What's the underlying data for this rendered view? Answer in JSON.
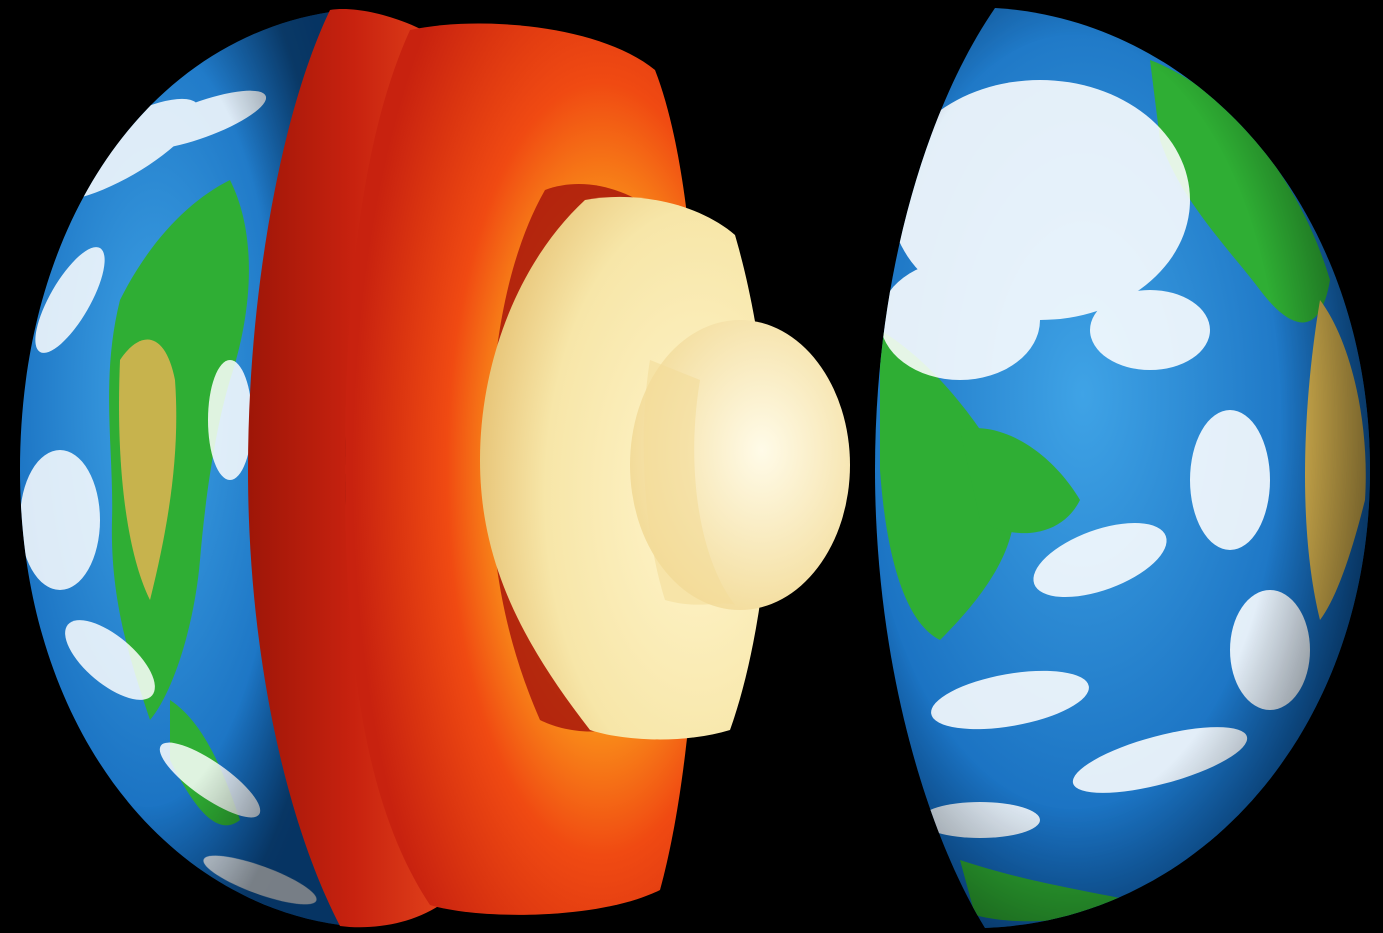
{
  "scene": {
    "subject": "earth-interior-cutaway",
    "colors": {
      "background": "#000000",
      "ocean_deep": "#0c5fb4",
      "ocean_light": "#3fa3e6",
      "land_green": "#2fae34",
      "land_desert": "#d8b450",
      "cloud_white": "#ffffff",
      "crust_red": "#c8220f",
      "mantle_orange": "#f04a12",
      "mantle_glow": "#ffb81e",
      "outer_core": "#f7e6a8",
      "inner_core": "#fffbe8"
    }
  }
}
